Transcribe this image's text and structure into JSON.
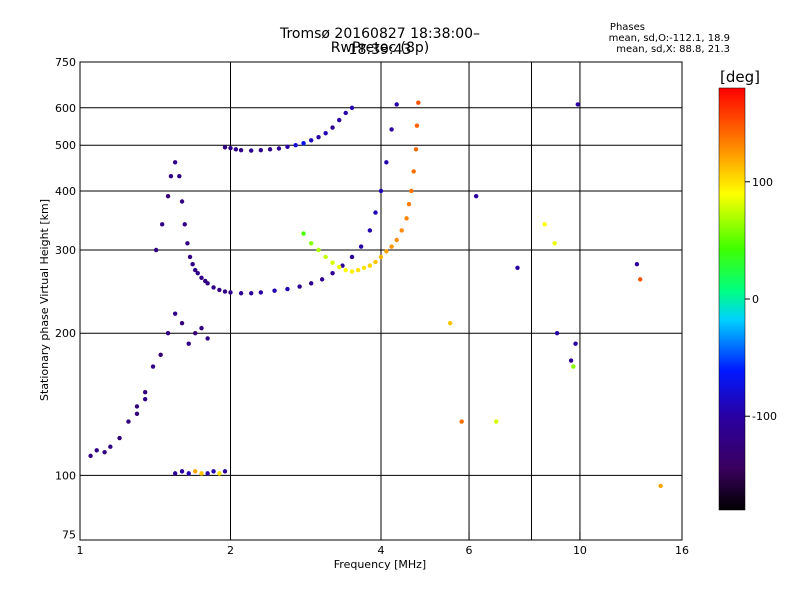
{
  "header": {
    "title": "Tromsø 20160827 18:38:00–18:39:43",
    "subtitle": "RwPretec (8p)"
  },
  "phase_box": {
    "title": "Phases",
    "o_line": "mean, sd,O:-112.1, 18.9",
    "x_line": "mean, sd,X:  88.8, 21.3"
  },
  "colorbar": {
    "unit": "[deg]",
    "range": [
      -180,
      180
    ],
    "ticks": [
      "100",
      "0",
      "-100"
    ],
    "tick_values": [
      100,
      0,
      -100
    ]
  },
  "chart_data": {
    "type": "scatter",
    "title": "Tromsø 20160827 18:38:00–18:39:43",
    "subtitle": "RwPretec (8p)",
    "xlabel": "Frequency [MHz]",
    "ylabel": "Stationary phase Virtual Height [km]",
    "x_scale": "log",
    "y_scale": "log",
    "xlim": [
      1,
      16
    ],
    "ylim": [
      73,
      750
    ],
    "x_ticks": [
      1,
      2,
      4,
      6,
      10,
      16
    ],
    "x_tick_labels": [
      "1",
      "2",
      "4",
      "6",
      "10",
      "16"
    ],
    "y_ticks": [
      75,
      100,
      200,
      300,
      400,
      500,
      600,
      750
    ],
    "y_tick_labels": [
      "75",
      "100",
      "200",
      "300",
      "400",
      "500",
      "600",
      "750"
    ],
    "grid_x": [
      1,
      2,
      4,
      6,
      8,
      10,
      16
    ],
    "grid_y": [
      100,
      200,
      300,
      400,
      500,
      600
    ],
    "grid": true,
    "color_variable": "phase [deg]",
    "series": [
      {
        "x": [
          1.42,
          1.46,
          1.5,
          1.52,
          1.55,
          1.58,
          1.6,
          1.62,
          1.64,
          1.66,
          1.68,
          1.7,
          1.72,
          1.75,
          1.78,
          1.8,
          1.85,
          1.9,
          1.95,
          2.0,
          2.1,
          2.2,
          2.3,
          2.45,
          2.6,
          2.75,
          2.9,
          3.05,
          3.2,
          3.35,
          3.5,
          3.65,
          3.8,
          3.9,
          4.0,
          4.1,
          4.2,
          4.3
        ],
        "y": [
          300,
          340,
          390,
          430,
          460,
          430,
          380,
          340,
          310,
          290,
          280,
          272,
          268,
          262,
          258,
          255,
          250,
          247,
          245,
          244,
          243,
          243,
          244,
          246,
          248,
          251,
          255,
          260,
          268,
          278,
          290,
          305,
          330,
          360,
          400,
          460,
          540,
          610
        ],
        "phase": [
          -120,
          -120,
          -125,
          -120,
          -118,
          -120,
          -122,
          -120,
          -119,
          -120,
          -121,
          -118,
          -120,
          -120,
          -121,
          -119,
          -118,
          -120,
          -118,
          -115,
          -110,
          -105,
          -100,
          -95,
          -92,
          -110,
          -115,
          -112,
          -110,
          -108,
          -105,
          -100,
          -95,
          -90,
          -92,
          -95,
          -100,
          -98
        ]
      },
      {
        "x": [
          2.8,
          2.9,
          3.0,
          3.1,
          3.2,
          3.3,
          3.4,
          3.5,
          3.6,
          3.7,
          3.8,
          3.9,
          4.0,
          4.1,
          4.2,
          4.3,
          4.4,
          4.5,
          4.55,
          4.6,
          4.65,
          4.7,
          4.72,
          4.75
        ],
        "y": [
          325,
          310,
          300,
          290,
          282,
          276,
          272,
          270,
          272,
          275,
          278,
          283,
          290,
          298,
          305,
          315,
          330,
          350,
          375,
          400,
          440,
          490,
          550,
          615
        ],
        "phase": [
          45,
          60,
          70,
          75,
          80,
          85,
          90,
          95,
          100,
          100,
          105,
          110,
          115,
          120,
          125,
          128,
          130,
          132,
          135,
          138,
          140,
          142,
          145,
          150
        ]
      },
      {
        "x": [
          1.3,
          1.35,
          1.4,
          1.45,
          1.5,
          1.55,
          1.6,
          1.65,
          1.7,
          1.75,
          1.8
        ],
        "y": [
          140,
          150,
          170,
          180,
          200,
          220,
          210,
          190,
          200,
          205,
          195
        ],
        "phase": [
          -130,
          -125,
          -120,
          -128,
          -122,
          -118,
          -125,
          -120,
          -130,
          -125,
          -120
        ]
      },
      {
        "x": [
          1.05,
          1.08,
          1.12,
          1.15,
          1.2,
          1.25,
          1.3,
          1.35
        ],
        "y": [
          110,
          113,
          112,
          115,
          120,
          130,
          135,
          145
        ],
        "phase": [
          -120,
          -118,
          -122,
          -120,
          -125,
          -123,
          -128,
          -120
        ]
      },
      {
        "x": [
          1.55,
          1.6,
          1.65,
          1.7,
          1.75,
          1.8,
          1.85,
          1.9,
          1.95
        ],
        "y": [
          101,
          102,
          101,
          102,
          101,
          101,
          102,
          101,
          102
        ],
        "phase": [
          -110,
          -100,
          -95,
          120,
          110,
          -100,
          -95,
          100,
          -105
        ]
      },
      {
        "x": [
          1.95,
          2.0,
          2.05,
          2.1,
          2.2,
          2.3,
          2.4,
          2.5,
          2.6,
          2.7,
          2.8,
          2.9,
          3.0,
          3.1,
          3.2,
          3.3,
          3.4,
          3.5
        ],
        "y": [
          495,
          493,
          490,
          488,
          487,
          488,
          490,
          492,
          496,
          500,
          505,
          512,
          520,
          530,
          545,
          565,
          585,
          600
        ],
        "phase": [
          -120,
          -118,
          -115,
          -120,
          -110,
          -115,
          -112,
          -110,
          -100,
          -80,
          -70,
          -90,
          -100,
          -95,
          -110,
          -100,
          -98,
          -95
        ]
      },
      {
        "x": [
          6.8,
          7.5,
          8.5,
          8.9,
          9.0,
          9.6,
          9.7,
          9.8,
          9.9,
          13.0,
          13.2,
          14.5,
          5.8,
          5.5,
          6.2
        ],
        "y": [
          130,
          275,
          340,
          310,
          200,
          175,
          170,
          190,
          610,
          280,
          260,
          95,
          130,
          210,
          390
        ],
        "phase": [
          80,
          -100,
          90,
          85,
          -100,
          -110,
          60,
          -100,
          -100,
          -105,
          150,
          120,
          140,
          110,
          -100
        ]
      }
    ]
  }
}
